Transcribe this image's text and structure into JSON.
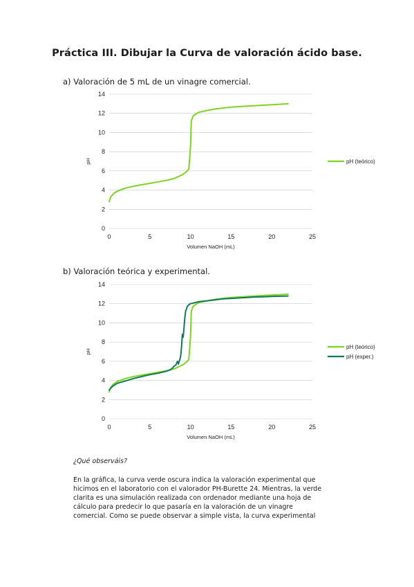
{
  "title": "Práctica III. Dibujar la Curva de valoración ácido base.",
  "section_a": "a)  Valoración de 5 mL de un vinagre comercial.",
  "section_b": "b)  Valoración teórica y experimental.",
  "question": "¿Qué observáis?",
  "paragraph_lines": [
    "En la gráfica, la curva verde oscura indica la valoración experimental que",
    "hicimos en el laboratorio con el valorador PH-Burette 24. Mientras, la verde",
    "clarita es una simulación realizada con ordenador mediante una hoja de",
    "cálculo para predecir lo que pasaría en la valoración de un vinagre",
    "comercial. Como se puede observar a simple vista, la curva experimental"
  ],
  "colors": {
    "teorico": "#7dd321",
    "experimental": "#0f7a55"
  },
  "chart_data": [
    {
      "type": "line",
      "xlabel": "Volumen NaOH (mL)",
      "ylabel": "pH",
      "xlim": [
        0,
        25
      ],
      "ylim": [
        0,
        14
      ],
      "xticks": [
        0,
        5,
        10,
        15,
        20,
        25
      ],
      "yticks": [
        0,
        2,
        4,
        6,
        8,
        10,
        12,
        14
      ],
      "grid": "horizontal",
      "legend": "right",
      "series": [
        {
          "name": "pH (teórico)",
          "x": [
            0,
            0.2,
            0.5,
            1,
            2,
            3,
            4,
            5,
            6,
            7,
            8,
            9,
            9.5,
            9.8,
            10,
            10.1,
            10.3,
            10.6,
            11,
            12,
            13,
            14,
            15,
            16,
            17,
            18,
            19,
            20,
            21,
            22
          ],
          "y": [
            2.8,
            3.3,
            3.6,
            3.9,
            4.2,
            4.4,
            4.55,
            4.7,
            4.85,
            5.0,
            5.2,
            5.6,
            5.9,
            6.2,
            8.5,
            11.2,
            11.7,
            11.9,
            12.1,
            12.3,
            12.45,
            12.55,
            12.65,
            12.7,
            12.75,
            12.8,
            12.85,
            12.9,
            12.95,
            13.0
          ]
        }
      ]
    },
    {
      "type": "line",
      "xlabel": "Volumen NaOH (mL)",
      "ylabel": "pH",
      "xlim": [
        0,
        25
      ],
      "ylim": [
        0,
        14
      ],
      "xticks": [
        0,
        5,
        10,
        15,
        20,
        25
      ],
      "yticks": [
        0,
        2,
        4,
        6,
        8,
        10,
        12,
        14
      ],
      "grid": "horizontal",
      "legend": "right",
      "series": [
        {
          "name": "pH (teórico)",
          "x": [
            0,
            0.2,
            0.5,
            1,
            2,
            3,
            4,
            5,
            6,
            7,
            8,
            9,
            9.5,
            9.8,
            10,
            10.1,
            10.3,
            10.6,
            11,
            12,
            13,
            14,
            15,
            16,
            17,
            18,
            19,
            20,
            21,
            22
          ],
          "y": [
            2.8,
            3.3,
            3.6,
            3.9,
            4.2,
            4.4,
            4.55,
            4.7,
            4.85,
            5.0,
            5.2,
            5.6,
            5.9,
            6.2,
            8.5,
            11.2,
            11.7,
            11.9,
            12.1,
            12.3,
            12.45,
            12.55,
            12.65,
            12.7,
            12.75,
            12.8,
            12.85,
            12.9,
            12.95,
            13.0
          ]
        },
        {
          "name": "pH (exper.)",
          "x": [
            0,
            0.3,
            0.6,
            1,
            2,
            3,
            4,
            5,
            6,
            7,
            7.5,
            7.8,
            8.0,
            8.2,
            8.4,
            8.5,
            8.7,
            8.8,
            8.9,
            9.0,
            9.1,
            9.2,
            9.3,
            9.4,
            9.6,
            9.8,
            10.0,
            10.5,
            11,
            12,
            13,
            14,
            15,
            16,
            17,
            18,
            19,
            20,
            21,
            22
          ],
          "y": [
            3.0,
            3.3,
            3.5,
            3.7,
            3.95,
            4.2,
            4.4,
            4.6,
            4.75,
            4.95,
            5.1,
            5.3,
            5.5,
            5.6,
            6.0,
            5.7,
            6.2,
            6.6,
            7.5,
            8.8,
            8.5,
            9.5,
            10.5,
            11.2,
            11.7,
            11.9,
            12.0,
            12.1,
            12.2,
            12.3,
            12.4,
            12.5,
            12.55,
            12.6,
            12.65,
            12.7,
            12.72,
            12.75,
            12.78,
            12.8
          ]
        }
      ]
    }
  ]
}
